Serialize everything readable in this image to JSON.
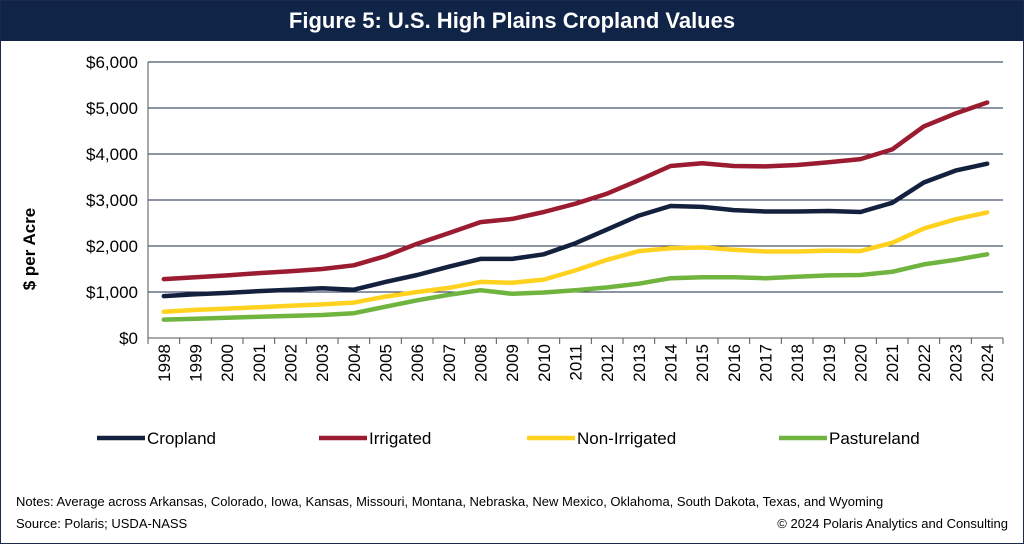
{
  "chart_data": {
    "type": "line",
    "title": "Figure 5: U.S. High Plains Cropland Values",
    "ylabel": "$ per Acre",
    "xlabel": "",
    "ylim": [
      0,
      6000
    ],
    "yticks": [
      0,
      1000,
      2000,
      3000,
      4000,
      5000,
      6000
    ],
    "ytick_labels": [
      "$0",
      "$1,000",
      "$2,000",
      "$3,000",
      "$4,000",
      "$5,000",
      "$6,000"
    ],
    "grid": "horizontal",
    "legend_position": "bottom",
    "x": [
      "1998",
      "1999",
      "2000",
      "2001",
      "2002",
      "2003",
      "2004",
      "2005",
      "2006",
      "2007",
      "2008",
      "2009",
      "2010",
      "2011",
      "2012",
      "2013",
      "2014",
      "2015",
      "2016",
      "2017",
      "2018",
      "2019",
      "2020",
      "2021",
      "2022",
      "2023",
      "2024"
    ],
    "series": [
      {
        "name": "Cropland",
        "color": "#13213f",
        "values": [
          910,
          950,
          980,
          1020,
          1050,
          1080,
          1050,
          1220,
          1370,
          1550,
          1720,
          1720,
          1820,
          2060,
          2360,
          2660,
          2870,
          2850,
          2780,
          2750,
          2750,
          2760,
          2740,
          2940,
          3380,
          3640,
          3790
        ]
      },
      {
        "name": "Irrigated",
        "color": "#9b1b30",
        "values": [
          1280,
          1320,
          1360,
          1410,
          1450,
          1500,
          1580,
          1780,
          2050,
          2280,
          2520,
          2590,
          2740,
          2920,
          3140,
          3430,
          3740,
          3800,
          3740,
          3730,
          3760,
          3820,
          3890,
          4100,
          4600,
          4880,
          5120
        ]
      },
      {
        "name": "Non-Irrigated",
        "color": "#ffd21f",
        "values": [
          570,
          610,
          640,
          670,
          700,
          730,
          770,
          900,
          1000,
          1090,
          1220,
          1200,
          1270,
          1470,
          1700,
          1890,
          1950,
          1970,
          1920,
          1880,
          1880,
          1900,
          1890,
          2070,
          2380,
          2580,
          2730
        ]
      },
      {
        "name": "Pastureland",
        "color": "#6fb43f",
        "values": [
          400,
          420,
          440,
          460,
          480,
          500,
          540,
          680,
          820,
          940,
          1040,
          960,
          990,
          1040,
          1100,
          1180,
          1300,
          1320,
          1320,
          1300,
          1330,
          1360,
          1370,
          1440,
          1600,
          1700,
          1820
        ]
      }
    ]
  },
  "footer": {
    "notes": "Notes: Average across Arkansas, Colorado, Iowa, Kansas, Missouri, Montana, Nebraska, New Mexico, Oklahoma, South Dakota, Texas, and Wyoming",
    "source": "Source: Polaris; USDA-NASS",
    "copyright": "© 2024 Polaris Analytics and Consulting"
  }
}
